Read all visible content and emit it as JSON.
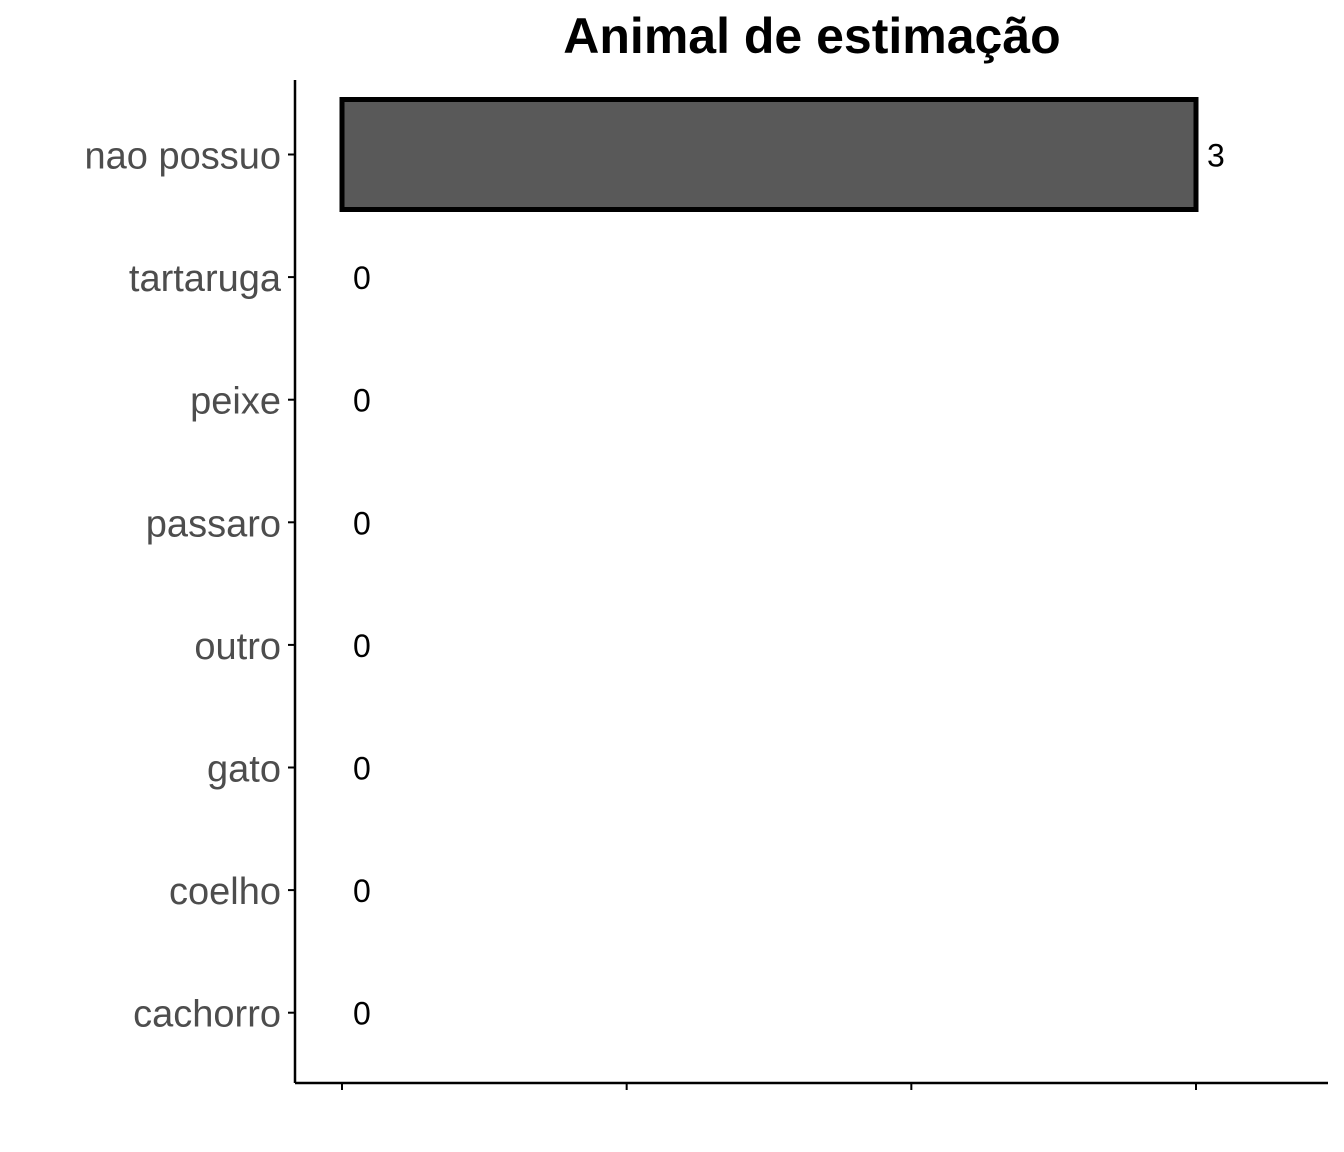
{
  "chart_data": {
    "type": "bar",
    "orientation": "horizontal",
    "title": "Animal de estimação",
    "xlabel": "",
    "ylabel": "",
    "categories": [
      "nao possuo",
      "tartaruga",
      "peixe",
      "passaro",
      "outro",
      "gato",
      "coelho",
      "cachorro"
    ],
    "values": [
      3,
      0,
      0,
      0,
      0,
      0,
      0,
      0
    ],
    "data_labels": [
      "3",
      "0",
      "0",
      "0",
      "0",
      "0",
      "0",
      "0"
    ],
    "xlim": [
      0,
      3
    ],
    "x_ticks": [
      0,
      1,
      2,
      3
    ],
    "x_tick_labels_shown": false,
    "grid": false,
    "legend": "none",
    "colors": {
      "bar_fill": "#595959",
      "bar_stroke": "#000000",
      "axis": "#000000",
      "category_text": "#4d4d4d"
    }
  }
}
